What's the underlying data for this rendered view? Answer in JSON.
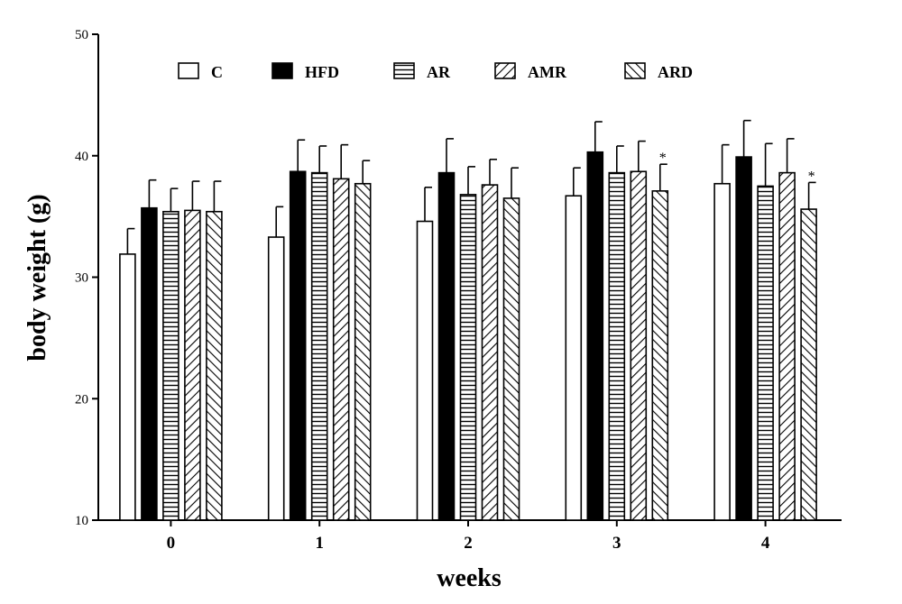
{
  "chart_data": {
    "type": "bar",
    "xlabel": "weeks",
    "ylabel": "body weight (g)",
    "ylim": [
      10,
      50
    ],
    "yticks": [
      10,
      20,
      30,
      40,
      50
    ],
    "categories": [
      "0",
      "1",
      "2",
      "3",
      "4"
    ],
    "legend_position": "top",
    "grid": false,
    "series": [
      {
        "name": "C",
        "pattern": "white",
        "values": [
          31.9,
          33.3,
          34.6,
          36.7,
          37.7
        ],
        "errors": [
          2.1,
          2.5,
          2.8,
          2.3,
          3.2
        ],
        "markers": [
          "",
          "",
          "",
          "",
          ""
        ]
      },
      {
        "name": "HFD",
        "pattern": "black",
        "values": [
          35.7,
          38.7,
          38.6,
          40.3,
          39.9
        ],
        "errors": [
          2.3,
          2.6,
          2.8,
          2.5,
          3.0
        ],
        "markers": [
          "",
          "",
          "",
          "",
          ""
        ]
      },
      {
        "name": "AR",
        "pattern": "horizontal",
        "values": [
          35.4,
          38.6,
          36.8,
          38.6,
          37.5
        ],
        "errors": [
          1.9,
          2.2,
          2.3,
          2.2,
          3.5
        ],
        "markers": [
          "",
          "",
          "",
          "",
          ""
        ]
      },
      {
        "name": "AMR",
        "pattern": "diag-back",
        "values": [
          35.5,
          38.1,
          37.6,
          38.7,
          38.6
        ],
        "errors": [
          2.4,
          2.8,
          2.1,
          2.5,
          2.8
        ],
        "markers": [
          "",
          "",
          "",
          "",
          ""
        ]
      },
      {
        "name": "ARD",
        "pattern": "diag-fwd",
        "values": [
          35.4,
          37.7,
          36.5,
          37.1,
          35.6
        ],
        "errors": [
          2.5,
          1.9,
          2.5,
          2.2,
          2.2
        ],
        "markers": [
          "",
          "",
          "",
          "*",
          "*"
        ]
      }
    ]
  }
}
